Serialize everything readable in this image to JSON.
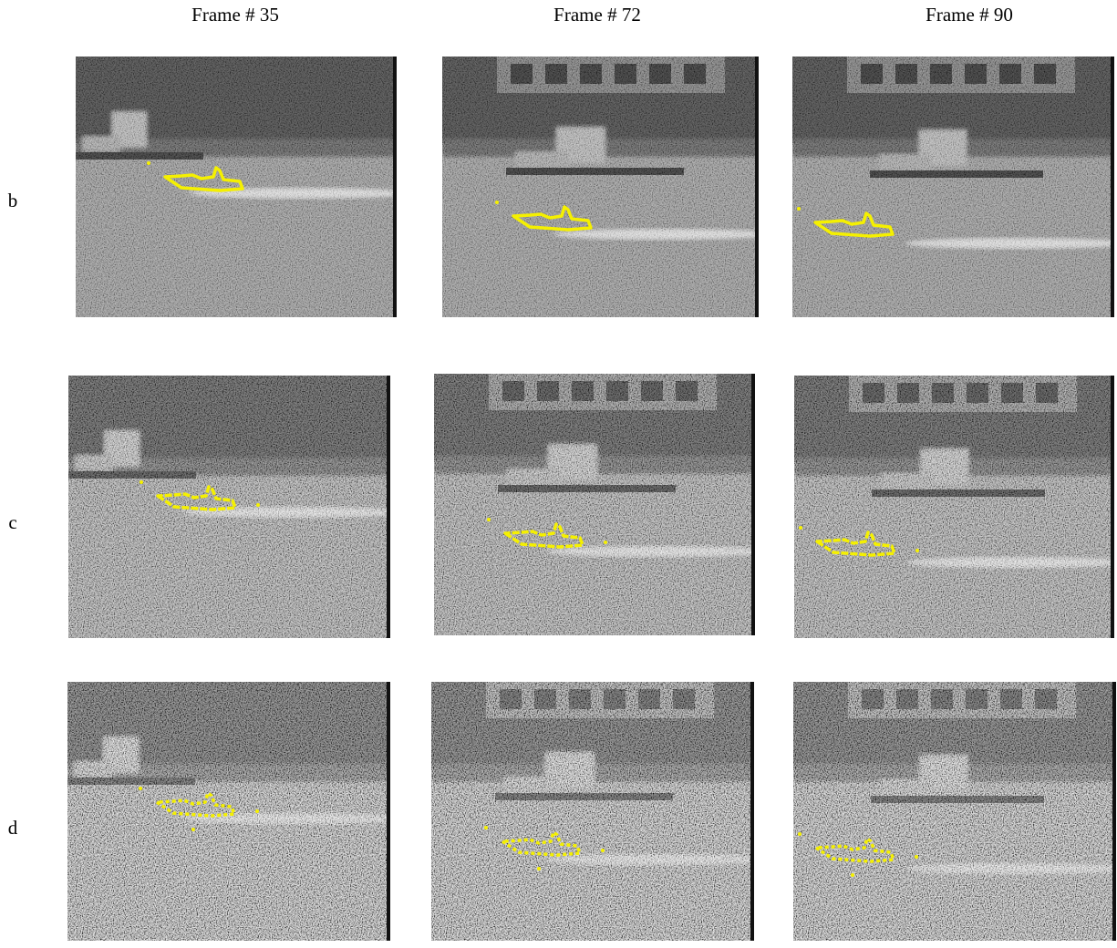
{
  "columns": [
    "Frame # 35",
    "Frame # 72",
    "Frame # 90"
  ],
  "rows": [
    "b",
    "c",
    "d"
  ]
}
